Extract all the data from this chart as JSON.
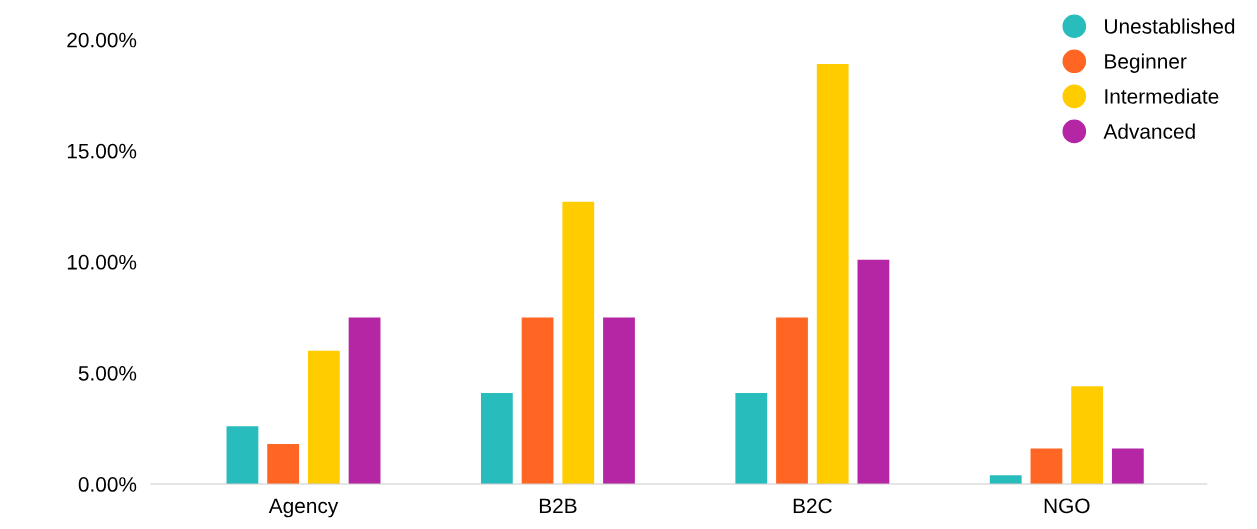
{
  "chart_data": {
    "type": "bar",
    "categories": [
      "Agency",
      "B2B",
      "B2C",
      "NGO"
    ],
    "series": [
      {
        "name": "Unestablished",
        "color": "#28bcbc",
        "values": [
          2.6,
          4.1,
          4.1,
          0.4
        ]
      },
      {
        "name": "Beginner",
        "color": "#ff6624",
        "values": [
          1.8,
          7.5,
          7.5,
          1.6
        ]
      },
      {
        "name": "Intermediate",
        "color": "#ffcc00",
        "values": [
          6.0,
          12.7,
          18.9,
          4.4
        ]
      },
      {
        "name": "Advanced",
        "color": "#b426a4",
        "values": [
          7.5,
          7.5,
          10.1,
          1.6
        ]
      }
    ],
    "ylim": [
      0,
      20
    ],
    "yticks": [
      {
        "value": 0,
        "label": "0.00%"
      },
      {
        "value": 5,
        "label": "5.00%"
      },
      {
        "value": 10,
        "label": "10.00%"
      },
      {
        "value": 15,
        "label": "15.00%"
      },
      {
        "value": 20,
        "label": "20.00%"
      }
    ],
    "grid": false,
    "legend": "top right"
  }
}
